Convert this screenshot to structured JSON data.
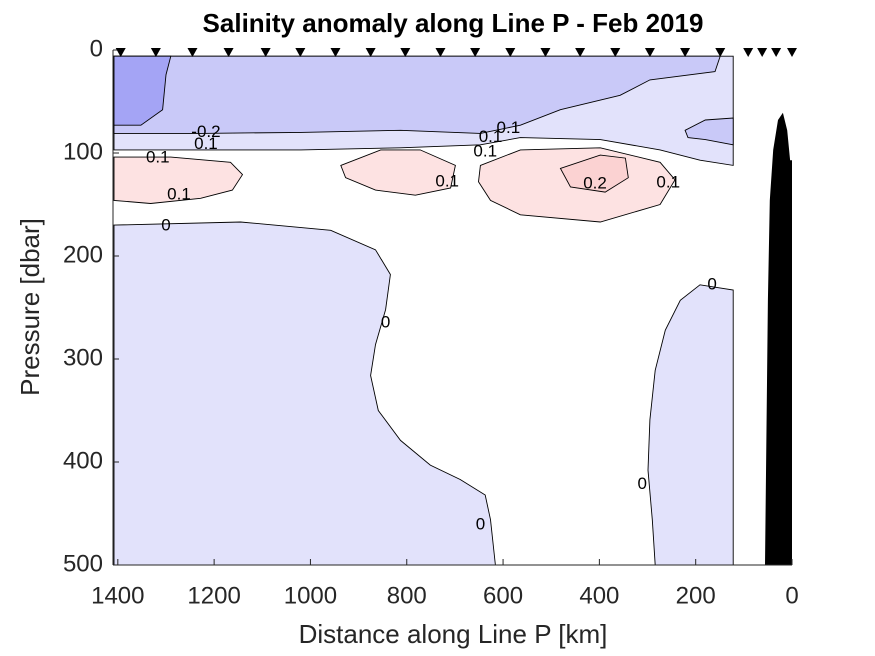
{
  "chart_data": {
    "type": "contour",
    "title": "Salinity anomaly along Line P - Feb 2019",
    "x_label": "Distance along Line P [km]",
    "y_label": "Pressure [dbar]",
    "xlim": [
      1410,
      0
    ],
    "ylim": [
      0,
      500
    ],
    "xticks": [
      1400,
      1200,
      1000,
      800,
      600,
      400,
      200,
      0
    ],
    "yticks": [
      0,
      100,
      200,
      300,
      400,
      500
    ],
    "regions": [
      {
        "color": "#e2e2fb",
        "x": [
          1408,
          122,
          122,
          191,
          274,
          398,
          564,
          647,
          813,
          1020,
          1228,
          1408
        ],
        "y": [
          6,
          6,
          112,
          107,
          97,
          87,
          85,
          92,
          95,
          97,
          97,
          97
        ]
      },
      {
        "color": "#c9c9f8",
        "x": [
          1408,
          149,
          160,
          295,
          357,
          481,
          564,
          647,
          813,
          1020,
          1228,
          1408
        ],
        "y": [
          6,
          6,
          21,
          29,
          44,
          58,
          73,
          81,
          78,
          80,
          81,
          81
        ]
      },
      {
        "color": "#a4a4f5",
        "x": [
          1408,
          1290,
          1300,
          1307,
          1352,
          1408
        ],
        "y": [
          6,
          6,
          24,
          58,
          73,
          73
        ]
      },
      {
        "color": "#c9c9f8",
        "x": [
          222,
          180,
          122,
          122,
          180,
          216
        ],
        "y": [
          78,
          68,
          66,
          92,
          87,
          85
        ]
      },
      {
        "color": "#e2e2fb",
        "x": [
          1408,
          1145,
          958,
          865,
          834,
          844,
          865,
          875,
          859,
          813,
          751,
          689,
          637,
          626,
          616,
          1408
        ],
        "y": [
          170,
          167,
          175,
          194,
          218,
          252,
          286,
          316,
          350,
          379,
          403,
          417,
          432,
          456,
          500,
          500
        ]
      },
      {
        "color": "#e2e2fb",
        "x": [
          122,
          122,
          191,
          232,
          263,
          284,
          295,
          299,
          290,
          284
        ],
        "y": [
          500,
          233,
          228,
          243,
          272,
          311,
          359,
          408,
          456,
          500
        ]
      },
      {
        "color": "#fde2e2",
        "x": [
          1408,
          1290,
          1166,
          1141,
          1162,
          1228,
          1332,
          1408
        ],
        "y": [
          104,
          104,
          109,
          121,
          136,
          144,
          149,
          146
        ]
      },
      {
        "color": "#fde2e2",
        "x": [
          937,
          854,
          772,
          699,
          709,
          782,
          865,
          927
        ],
        "y": [
          112,
          97,
          97,
          112,
          134,
          141,
          136,
          124
        ]
      },
      {
        "color": "#fde2e2",
        "x": [
          647,
          564,
          398,
          274,
          243,
          274,
          398,
          564,
          626,
          651
        ],
        "y": [
          112,
          97,
          95,
          109,
          126,
          150,
          167,
          160,
          146,
          128
        ]
      },
      {
        "color": "#fbd2d2",
        "x": [
          481,
          398,
          346,
          340,
          388,
          460
        ],
        "y": [
          115,
          102,
          105,
          124,
          138,
          133
        ]
      }
    ],
    "contour_labels": [
      {
        "level": -0.2,
        "x": 1217,
        "y": 80
      },
      {
        "level": 0.1,
        "x": 1317,
        "y": 105
      },
      {
        "level": 0.1,
        "x": 1217,
        "y": 92
      },
      {
        "level": 0.1,
        "x": 1273,
        "y": 141
      },
      {
        "level": 0,
        "x": 1300,
        "y": 171
      },
      {
        "level": 0.1,
        "x": 626,
        "y": 85
      },
      {
        "level": 0.1,
        "x": 589,
        "y": 76
      },
      {
        "level": 0.1,
        "x": 637,
        "y": 99
      },
      {
        "level": 0.1,
        "x": 716,
        "y": 128
      },
      {
        "level": 0.2,
        "x": 409,
        "y": 130
      },
      {
        "level": 0.1,
        "x": 257,
        "y": 129
      },
      {
        "level": 0,
        "x": 166,
        "y": 228
      },
      {
        "level": 0,
        "x": 844,
        "y": 265
      },
      {
        "level": 0,
        "x": 311,
        "y": 422
      },
      {
        "level": 0,
        "x": 647,
        "y": 461
      }
    ],
    "stations": [
      1394,
      1321,
      1245,
      1170,
      1093,
      1021,
      948,
      875,
      803,
      730,
      658,
      585,
      512,
      440,
      367,
      295,
      222,
      149,
      91,
      62,
      33,
      0
    ],
    "bathymetry": {
      "color": "#000000",
      "x": [
        56,
        50,
        46,
        39,
        29,
        19,
        10,
        4,
        0,
        0
      ],
      "y": [
        500,
        243,
        146,
        97,
        68,
        61,
        78,
        107,
        107,
        500
      ]
    }
  }
}
